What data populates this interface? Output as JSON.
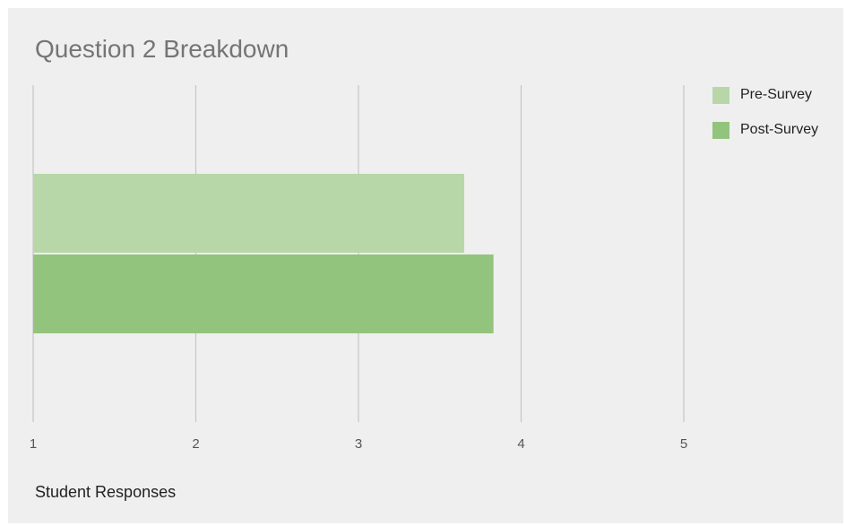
{
  "chart_data": {
    "type": "bar",
    "orientation": "horizontal",
    "title": "Question 2 Breakdown",
    "xlabel": "Student Responses",
    "ylabel": "",
    "xlim": [
      1,
      5
    ],
    "xticks": [
      "1",
      "2",
      "3",
      "4",
      "5"
    ],
    "grid": true,
    "legend_position": "right",
    "series": [
      {
        "name": "Pre-Survey",
        "value": 3.65,
        "color": "#b7d7a8"
      },
      {
        "name": "Post-Survey",
        "value": 3.83,
        "color": "#93c47d"
      }
    ]
  }
}
